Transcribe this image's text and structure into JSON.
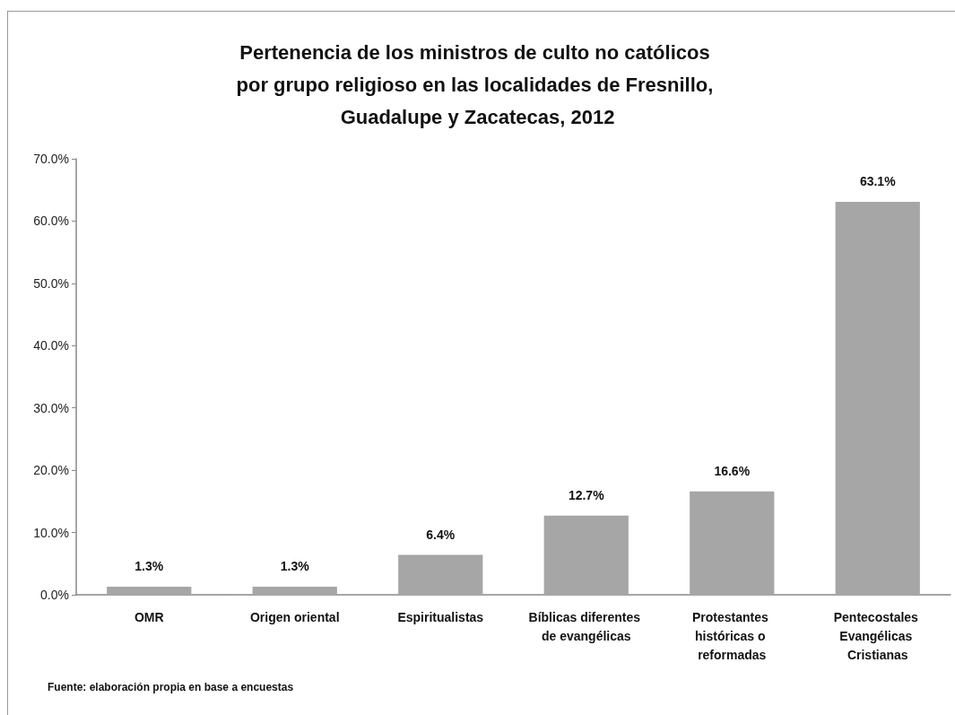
{
  "chart_data": {
    "type": "bar",
    "title": "Pertenencia de los ministros de culto no católicos por grupo religioso en las localidades de Fresnillo, Guadalupe y Zacatecas, 2012",
    "categories": [
      "OMR",
      "Origen oriental",
      "Espiritualistas",
      "Bíblicas diferentes de evangélicas",
      "Protestantes históricas o reformadas",
      "Pentecostales Evangélicas Cristianas"
    ],
    "values": [
      1.3,
      1.3,
      6.4,
      12.7,
      16.6,
      63.1
    ],
    "color": "#a6a6a6",
    "value_labels": [
      "1.3%",
      "1.3%",
      "6.4%",
      "12.7%",
      "16.6%",
      "63.1%"
    ],
    "ylim": [
      0,
      70
    ],
    "yticks": [
      {
        "value": 0,
        "label": "0.0%"
      },
      {
        "value": 10,
        "label": "10.0%"
      },
      {
        "value": 20,
        "label": "20.0%"
      },
      {
        "value": 30,
        "label": "30.0%"
      },
      {
        "value": 40,
        "label": "40.0%"
      },
      {
        "value": 50,
        "label": "50.0%"
      },
      {
        "value": 60,
        "label": "60.0%"
      },
      {
        "value": 70,
        "label": "70.0%"
      }
    ],
    "annotations": [
      "Fuente: elaboración propia en base a encuestas"
    ]
  }
}
